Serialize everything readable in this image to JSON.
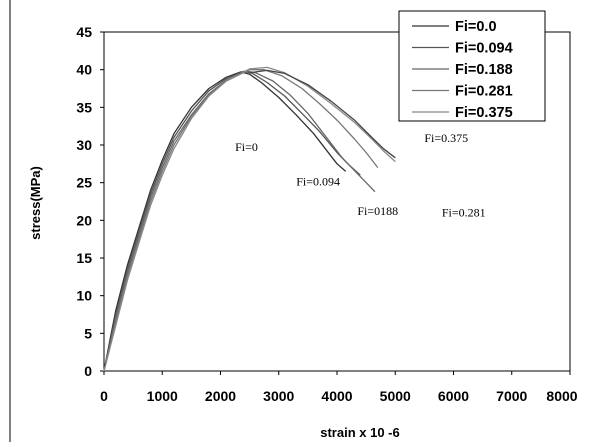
{
  "chart_data": {
    "type": "line",
    "title": "",
    "xlabel": "strain x 10 -6",
    "ylabel": "stress(MPa)",
    "xlim": [
      0,
      8000
    ],
    "ylim": [
      0,
      45
    ],
    "x_ticks": [
      0,
      1000,
      2000,
      3000,
      4000,
      5000,
      6000,
      7000,
      8000
    ],
    "y_ticks": [
      0,
      5,
      10,
      15,
      20,
      25,
      30,
      35,
      40,
      45
    ],
    "grid": false,
    "legend_position": "top-right",
    "series": [
      {
        "name": "Fi=0.0",
        "color": "#333333",
        "points": [
          [
            0,
            0
          ],
          [
            100,
            4
          ],
          [
            200,
            8
          ],
          [
            400,
            14
          ],
          [
            600,
            19
          ],
          [
            800,
            24
          ],
          [
            1000,
            28
          ],
          [
            1200,
            31.5
          ],
          [
            1500,
            35
          ],
          [
            1800,
            37.5
          ],
          [
            2100,
            39
          ],
          [
            2350,
            39.7
          ],
          [
            2500,
            39.4
          ],
          [
            2700,
            38.3
          ],
          [
            3000,
            36.3
          ],
          [
            3300,
            34
          ],
          [
            3600,
            31.5
          ],
          [
            3800,
            29.5
          ],
          [
            4000,
            27.5
          ],
          [
            4150,
            26.5
          ]
        ]
      },
      {
        "name": "Fi=0.094",
        "color": "#555555",
        "points": [
          [
            0,
            0
          ],
          [
            100,
            3.5
          ],
          [
            200,
            7.5
          ],
          [
            400,
            13.5
          ],
          [
            600,
            18.5
          ],
          [
            800,
            23.5
          ],
          [
            1000,
            27.5
          ],
          [
            1200,
            31
          ],
          [
            1500,
            34.5
          ],
          [
            1800,
            37.2
          ],
          [
            2100,
            38.8
          ],
          [
            2400,
            39.8
          ],
          [
            2550,
            39.5
          ],
          [
            2800,
            38.3
          ],
          [
            3100,
            36.5
          ],
          [
            3400,
            34.2
          ],
          [
            3700,
            31.8
          ],
          [
            4000,
            29
          ],
          [
            4200,
            27.4
          ],
          [
            4400,
            26
          ]
        ]
      },
      {
        "name": "Fi=0.188",
        "color": "#666666",
        "points": [
          [
            0,
            0
          ],
          [
            100,
            3.5
          ],
          [
            200,
            7
          ],
          [
            400,
            13
          ],
          [
            600,
            18
          ],
          [
            800,
            23
          ],
          [
            1000,
            27
          ],
          [
            1200,
            30.5
          ],
          [
            1500,
            34
          ],
          [
            1800,
            36.8
          ],
          [
            2100,
            38.6
          ],
          [
            2450,
            39.8
          ],
          [
            2600,
            39.6
          ],
          [
            2900,
            38.5
          ],
          [
            3200,
            36.6
          ],
          [
            3500,
            34.2
          ],
          [
            3800,
            31.2
          ],
          [
            4100,
            28.2
          ],
          [
            4400,
            25.8
          ],
          [
            4650,
            23.8
          ]
        ]
      },
      {
        "name": "Fi=0.281",
        "color": "#777777",
        "points": [
          [
            0,
            0
          ],
          [
            100,
            3
          ],
          [
            200,
            6.5
          ],
          [
            400,
            12.5
          ],
          [
            600,
            17.5
          ],
          [
            800,
            22.5
          ],
          [
            1000,
            26.5
          ],
          [
            1200,
            30
          ],
          [
            1500,
            33.8
          ],
          [
            1800,
            36.6
          ],
          [
            2100,
            38.5
          ],
          [
            2500,
            40
          ],
          [
            2750,
            40
          ],
          [
            3050,
            39.2
          ],
          [
            3400,
            37.5
          ],
          [
            3700,
            35.5
          ],
          [
            4000,
            33.3
          ],
          [
            4300,
            30.8
          ],
          [
            4500,
            29
          ],
          [
            4700,
            27
          ]
        ]
      },
      {
        "name": "Fi=0.375",
        "color": "#888888",
        "points": [
          [
            0,
            0
          ],
          [
            100,
            3
          ],
          [
            200,
            6
          ],
          [
            400,
            12
          ],
          [
            600,
            17
          ],
          [
            800,
            22
          ],
          [
            1000,
            26
          ],
          [
            1200,
            29.5
          ],
          [
            1500,
            33.5
          ],
          [
            1800,
            36.5
          ],
          [
            2100,
            38.5
          ],
          [
            2500,
            40.1
          ],
          [
            2800,
            40.3
          ],
          [
            3100,
            39.6
          ],
          [
            3500,
            37.8
          ],
          [
            3900,
            35.5
          ],
          [
            4300,
            33
          ],
          [
            4600,
            30.8
          ],
          [
            4800,
            29.2
          ],
          [
            5000,
            27.8
          ]
        ]
      },
      {
        "name": "",
        "color": "#444444",
        "points": [
          [
            2500,
            39.6
          ],
          [
            2800,
            39.9
          ],
          [
            3100,
            39.5
          ],
          [
            3500,
            38
          ],
          [
            3900,
            35.8
          ],
          [
            4300,
            33.3
          ],
          [
            4600,
            31
          ],
          [
            4800,
            29.5
          ],
          [
            5000,
            28.3
          ]
        ]
      }
    ],
    "annotations": [
      {
        "text": "Fi=0",
        "x": 2250,
        "y": 29.2
      },
      {
        "text": "Fi=0.094",
        "x": 3300,
        "y": 24.6
      },
      {
        "text": "Fi=0188",
        "x": 4350,
        "y": 20.7
      },
      {
        "text": "Fi=0.281",
        "x": 5800,
        "y": 20.5
      },
      {
        "text": "Fi=0.375",
        "x": 5500,
        "y": 30.4
      }
    ]
  }
}
